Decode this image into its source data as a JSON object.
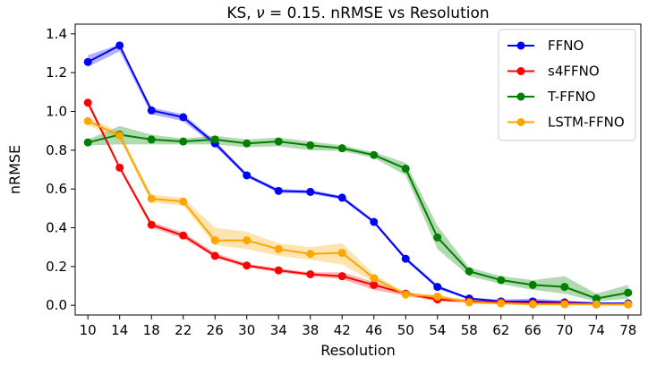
{
  "chart_data": {
    "type": "line",
    "title_prefix": "KS, ",
    "title_nu": "ν",
    "title_suffix": " = 0.15. nRMSE vs Resolution",
    "xlabel": "Resolution",
    "ylabel": "nRMSE",
    "x": [
      10,
      14,
      18,
      22,
      26,
      30,
      34,
      38,
      42,
      46,
      50,
      54,
      58,
      62,
      66,
      70,
      74,
      78
    ],
    "ylim": [
      -0.05,
      1.45
    ],
    "yticks": [
      "0.0",
      "0.2",
      "0.4",
      "0.6",
      "0.8",
      "1.0",
      "1.2",
      "1.4"
    ],
    "grid": false,
    "legend_position": "top-right",
    "series": [
      {
        "name": "FFNO",
        "color": "#0000ff",
        "values": [
          1.255,
          1.34,
          1.005,
          0.97,
          0.835,
          0.67,
          0.59,
          0.585,
          0.555,
          0.43,
          0.24,
          0.095,
          0.035,
          0.02,
          0.02,
          0.015,
          0.01,
          0.01
        ],
        "lower": [
          1.23,
          1.31,
          0.985,
          0.95,
          0.82,
          0.66,
          0.58,
          0.575,
          0.545,
          0.42,
          0.23,
          0.085,
          0.03,
          0.015,
          0.01,
          0.01,
          0.005,
          0.005
        ],
        "upper": [
          1.29,
          1.345,
          1.02,
          0.985,
          0.85,
          0.68,
          0.6,
          0.595,
          0.565,
          0.44,
          0.25,
          0.105,
          0.04,
          0.03,
          0.035,
          0.025,
          0.015,
          0.015
        ]
      },
      {
        "name": "s4FFNO",
        "color": "#ff0000",
        "values": [
          1.045,
          0.71,
          0.415,
          0.36,
          0.255,
          0.205,
          0.18,
          0.16,
          0.15,
          0.105,
          0.06,
          0.03,
          0.02,
          0.015,
          0.01,
          0.01,
          0.005,
          0.005
        ],
        "lower": [
          1.03,
          0.7,
          0.4,
          0.345,
          0.245,
          0.195,
          0.17,
          0.15,
          0.135,
          0.08,
          0.05,
          0.02,
          0.015,
          0.01,
          0.005,
          0.005,
          0.0,
          0.0
        ],
        "upper": [
          1.06,
          0.72,
          0.43,
          0.375,
          0.27,
          0.215,
          0.19,
          0.17,
          0.17,
          0.12,
          0.07,
          0.04,
          0.03,
          0.02,
          0.015,
          0.015,
          0.01,
          0.01
        ]
      },
      {
        "name": "T-FFNO",
        "color": "#008000",
        "values": [
          0.84,
          0.88,
          0.855,
          0.845,
          0.855,
          0.835,
          0.845,
          0.825,
          0.81,
          0.775,
          0.705,
          0.35,
          0.175,
          0.13,
          0.105,
          0.095,
          0.035,
          0.065
        ],
        "lower": [
          0.825,
          0.83,
          0.83,
          0.83,
          0.83,
          0.815,
          0.82,
          0.8,
          0.795,
          0.76,
          0.67,
          0.29,
          0.15,
          0.11,
          0.08,
          0.06,
          0.02,
          0.035
        ],
        "upper": [
          0.855,
          0.925,
          0.88,
          0.86,
          0.875,
          0.855,
          0.865,
          0.845,
          0.825,
          0.79,
          0.735,
          0.41,
          0.195,
          0.15,
          0.13,
          0.15,
          0.06,
          0.105
        ]
      },
      {
        "name": "LSTM-FFNO",
        "color": "#ffa500",
        "values": [
          0.95,
          0.875,
          0.55,
          0.535,
          0.335,
          0.335,
          0.29,
          0.265,
          0.27,
          0.14,
          0.055,
          0.045,
          0.015,
          0.01,
          0.005,
          0.005,
          0.005,
          0.005
        ],
        "lower": [
          0.93,
          0.855,
          0.53,
          0.515,
          0.31,
          0.29,
          0.255,
          0.235,
          0.21,
          0.12,
          0.045,
          0.035,
          0.01,
          0.005,
          0.0,
          0.0,
          0.0,
          0.0
        ],
        "upper": [
          0.97,
          0.895,
          0.57,
          0.555,
          0.4,
          0.38,
          0.32,
          0.3,
          0.32,
          0.16,
          0.065,
          0.055,
          0.025,
          0.015,
          0.01,
          0.01,
          0.01,
          0.01
        ]
      }
    ]
  }
}
